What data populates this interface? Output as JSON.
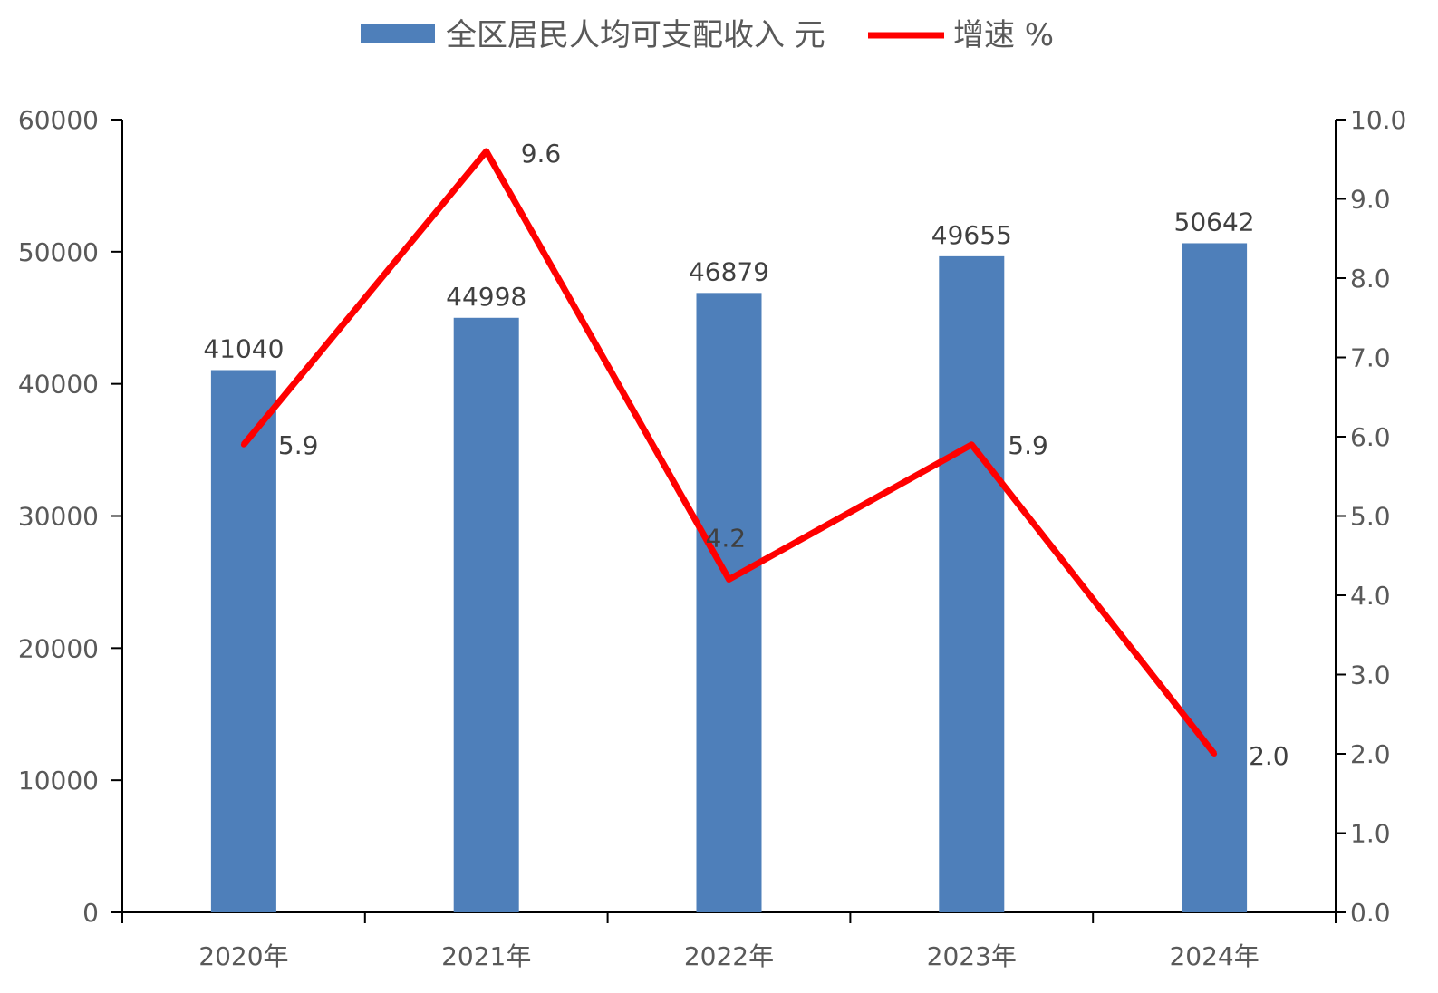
{
  "chart_data": {
    "type": "bar",
    "categories": [
      "2020年",
      "2021年",
      "2022年",
      "2023年",
      "2024年"
    ],
    "series": [
      {
        "name": "全区居民人均可支配收入 元",
        "type": "bar",
        "axis": "left",
        "color": "#4E7FBA",
        "values": [
          41040,
          44998,
          46879,
          49655,
          50642
        ],
        "labels": [
          "41040",
          "44998",
          "46879",
          "49655",
          "50642"
        ]
      },
      {
        "name": "增速 %",
        "type": "line",
        "axis": "right",
        "color": "#FF0000",
        "values": [
          5.9,
          9.6,
          4.2,
          5.9,
          2.0
        ],
        "labels": [
          "5.9",
          "9.6",
          "4.2",
          "5.9",
          "2.0"
        ]
      }
    ],
    "y_left": {
      "min": 0,
      "max": 60000,
      "ticks": [
        "0",
        "10000",
        "20000",
        "30000",
        "40000",
        "50000",
        "60000"
      ]
    },
    "y_right": {
      "min": 0,
      "max": 10,
      "ticks": [
        "0.0",
        "1.0",
        "2.0",
        "3.0",
        "4.0",
        "5.0",
        "6.0",
        "7.0",
        "8.0",
        "9.0",
        "10.0"
      ]
    },
    "legend_position": "top",
    "grid": false
  }
}
